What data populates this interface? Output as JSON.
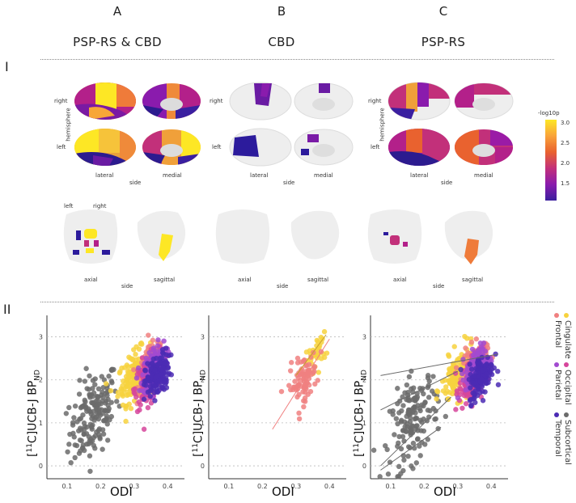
{
  "columns": [
    {
      "letter": "A",
      "title": "PSP-RS & CBD"
    },
    {
      "letter": "B",
      "title": "CBD"
    },
    {
      "letter": "C",
      "title": "PSP-RS"
    }
  ],
  "row_labels": {
    "row1": "I",
    "row2": "II"
  },
  "brain_labels": {
    "right": "right",
    "left": "left",
    "hemisphere": "hemisphere",
    "lateral": "lateral",
    "medial": "medial",
    "side": "side",
    "axial": "axial",
    "sagittal": "sagittal"
  },
  "colorbar": {
    "title": "-log10p",
    "ticks": [
      "3.0",
      "2.5",
      "2.0",
      "1.5"
    ],
    "colors": [
      "#fde725",
      "#f9a33a",
      "#e9622f",
      "#c2307a",
      "#8a1bad",
      "#3b1f9e"
    ]
  },
  "legend": {
    "entries": [
      {
        "name": "Cingulate",
        "color": "#f7d23e"
      },
      {
        "name": "Frontal",
        "color": "#f08080"
      },
      {
        "name": "Occipital",
        "color": "#d6459b"
      },
      {
        "name": "Parietal",
        "color": "#a24ad0"
      },
      {
        "name": "Subcortical",
        "color": "#6b6b6b"
      },
      {
        "name": "Temporal",
        "color": "#4b2bb4"
      }
    ]
  },
  "chart_data": [
    {
      "type": "scatter",
      "panel": "A",
      "xlabel": "ODI",
      "ylabel": "[11C]UCB-J BPND",
      "xlim": [
        0.04,
        0.45
      ],
      "ylim": [
        -0.3,
        3.5
      ],
      "xticks": [
        "0.1",
        "0.2",
        "0.3",
        "0.4"
      ],
      "yticks": [
        "0",
        "1",
        "2",
        "3"
      ],
      "series": [
        {
          "name": "Subcortical",
          "color": "#6b6b6b",
          "center": [
            0.18,
            1.2
          ],
          "spread": [
            0.06,
            0.8
          ],
          "n": 170
        },
        {
          "name": "Cingulate",
          "color": "#f7d23e",
          "center": [
            0.3,
            2.1
          ],
          "spread": [
            0.04,
            0.45
          ],
          "n": 150
        },
        {
          "name": "Frontal",
          "color": "#f08080",
          "center": [
            0.35,
            2.3
          ],
          "spread": [
            0.03,
            0.4
          ],
          "n": 160
        },
        {
          "name": "Occipital",
          "color": "#d6459b",
          "center": [
            0.34,
            2.0
          ],
          "spread": [
            0.03,
            0.45
          ],
          "n": 140
        },
        {
          "name": "Parietal",
          "color": "#a24ad0",
          "center": [
            0.36,
            2.3
          ],
          "spread": [
            0.03,
            0.4
          ],
          "n": 150
        },
        {
          "name": "Temporal",
          "color": "#4b2bb4",
          "center": [
            0.37,
            2.1
          ],
          "spread": [
            0.03,
            0.4
          ],
          "n": 150
        }
      ],
      "fit_lines": []
    },
    {
      "type": "scatter",
      "panel": "B",
      "xlabel": "ODI",
      "ylabel": "[11C]UCB-J BPND",
      "xlim": [
        0.04,
        0.45
      ],
      "ylim": [
        -0.3,
        3.5
      ],
      "xticks": [
        "0.1",
        "0.2",
        "0.3",
        "0.4"
      ],
      "yticks": [
        "0",
        "1",
        "2",
        "3"
      ],
      "series": [
        {
          "name": "Cingulate",
          "color": "#f7d23e",
          "center": [
            0.36,
            2.6
          ],
          "spread": [
            0.025,
            0.3
          ],
          "n": 35
        },
        {
          "name": "Frontal",
          "color": "#f08080",
          "center": [
            0.32,
            2.0
          ],
          "spread": [
            0.035,
            0.45
          ],
          "n": 80
        }
      ],
      "fit_lines": [
        {
          "color": "#f08080",
          "x": [
            0.23,
            0.4
          ],
          "y": [
            0.85,
            2.95
          ]
        },
        {
          "color": "#c9a22e",
          "x": [
            0.3,
            0.39
          ],
          "y": [
            2.1,
            3.05
          ]
        }
      ]
    },
    {
      "type": "scatter",
      "panel": "C",
      "xlabel": "ODI",
      "ylabel": "[11C]UCB-J BPND",
      "xlim": [
        0.04,
        0.45
      ],
      "ylim": [
        -0.3,
        3.5
      ],
      "xticks": [
        "0.1",
        "0.2",
        "0.3",
        "0.4"
      ],
      "yticks": [
        "0",
        "1",
        "2",
        "3"
      ],
      "series": [
        {
          "name": "Subcortical",
          "color": "#6b6b6b",
          "center": [
            0.17,
            1.1
          ],
          "spread": [
            0.06,
            0.8
          ],
          "n": 150
        },
        {
          "name": "Cingulate",
          "color": "#f7d23e",
          "center": [
            0.3,
            2.1
          ],
          "spread": [
            0.04,
            0.45
          ],
          "n": 130
        },
        {
          "name": "Frontal",
          "color": "#f08080",
          "center": [
            0.35,
            2.3
          ],
          "spread": [
            0.03,
            0.4
          ],
          "n": 140
        },
        {
          "name": "Occipital",
          "color": "#d6459b",
          "center": [
            0.34,
            2.0
          ],
          "spread": [
            0.03,
            0.45
          ],
          "n": 130
        },
        {
          "name": "Parietal",
          "color": "#a24ad0",
          "center": [
            0.36,
            2.3
          ],
          "spread": [
            0.03,
            0.4
          ],
          "n": 140
        },
        {
          "name": "Temporal",
          "color": "#4b2bb4",
          "center": [
            0.37,
            2.1
          ],
          "spread": [
            0.03,
            0.4
          ],
          "n": 140
        }
      ],
      "fit_lines": [
        {
          "color": "#6b6b6b",
          "x": [
            0.07,
            0.42
          ],
          "y": [
            2.1,
            2.6
          ]
        },
        {
          "color": "#6b6b6b",
          "x": [
            0.07,
            0.3
          ],
          "y": [
            1.3,
            2.2
          ]
        },
        {
          "color": "#6b6b6b",
          "x": [
            0.07,
            0.28
          ],
          "y": [
            0.0,
            1.6
          ]
        },
        {
          "color": "#6b6b6b",
          "x": [
            0.07,
            0.25
          ],
          "y": [
            -0.1,
            0.9
          ]
        }
      ]
    }
  ]
}
